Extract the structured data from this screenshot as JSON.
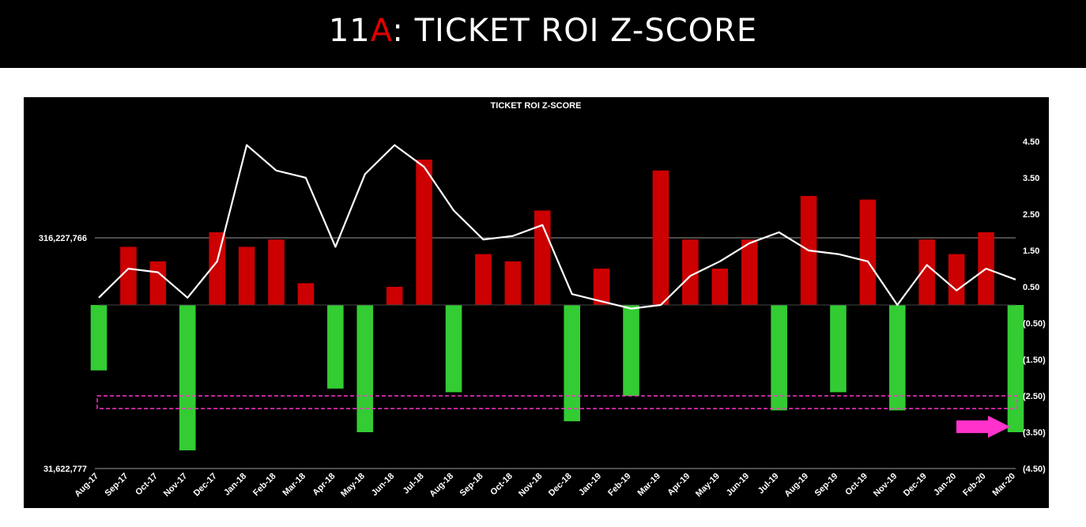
{
  "header": {
    "title_prefix": "11",
    "title_accent": "A",
    "title_suffix": ": TICKET ROI Z-SCORE"
  },
  "colors": {
    "background": "#000000",
    "positive_bar": "#cc0000",
    "negative_bar": "#33cc33",
    "line": "#ffffff",
    "highlight": "#ff33cc",
    "accent": "#e00000"
  },
  "chart_data": {
    "type": "bar",
    "title": "TICKET ROI Z-SCORE",
    "x_tick_labels": [
      "Aug-17",
      "Sep-17",
      "Oct-17",
      "Nov-17",
      "Dec-17",
      "Jan-18",
      "Feb-18",
      "Mar-18",
      "Apr-18",
      "May-18",
      "Jun-18",
      "Jul-18",
      "Aug-18",
      "Sep-18",
      "Oct-18",
      "Nov-18",
      "Dec-18",
      "Jan-19",
      "Feb-19",
      "Mar-19",
      "Apr-19",
      "May-19",
      "Jun-19",
      "Jul-19",
      "Aug-19",
      "Sep-19",
      "Oct-19",
      "Nov-19",
      "Dec-19",
      "Jan-20",
      "Feb-20",
      "Mar-20"
    ],
    "right_axis": {
      "tick_labels": [
        "4.50",
        "3.50",
        "2.50",
        "1.50",
        "0.50",
        "(0.50)",
        "(1.50)",
        "(2.50)",
        "(3.50)",
        "(4.50)"
      ],
      "tick_values": [
        4.5,
        3.5,
        2.5,
        1.5,
        0.5,
        -0.5,
        -1.5,
        -2.5,
        -3.5,
        -4.5
      ],
      "range": [
        -4.5,
        4.5
      ]
    },
    "left_axis": {
      "scale": "log",
      "tick_labels": [
        "316,227,766",
        "31,622,777"
      ],
      "tick_values": [
        316227766,
        31622777
      ]
    },
    "series": [
      {
        "type": "bar",
        "axis": "right",
        "dates": [
          "Aug-17",
          "Sep-17",
          "Oct-17",
          "Nov-17",
          "Dec-17",
          "Jan-18",
          "Feb-18",
          "Mar-18",
          "Apr-18",
          "May-18",
          "Jun-18",
          "Jul-18",
          "Aug-18",
          "Sep-18",
          "Oct-18",
          "Nov-18",
          "Dec-18",
          "Jan-19",
          "Feb-19",
          "Mar-19",
          "Apr-19",
          "May-19",
          "Jun-19",
          "Jul-19",
          "Aug-19",
          "Sep-19",
          "Oct-19",
          "Nov-19",
          "Dec-19",
          "Jan-20",
          "Feb-20",
          "Mar-20"
        ],
        "values": [
          -1.8,
          1.6,
          1.2,
          -4.0,
          2.0,
          1.6,
          1.8,
          0.6,
          -2.3,
          -3.5,
          0.5,
          4.0,
          -2.4,
          1.4,
          1.2,
          2.6,
          -3.2,
          1.0,
          -2.5,
          3.7,
          1.8,
          1.0,
          1.8,
          -2.9,
          3.0,
          -2.4,
          2.9,
          -2.9,
          1.8,
          1.4,
          2.0,
          -3.5
        ]
      },
      {
        "type": "line",
        "axis": "right",
        "dates": [
          "Aug-17",
          "Sep-17",
          "Oct-17",
          "Nov-17",
          "Dec-17",
          "Jan-18",
          "Feb-18",
          "Mar-18",
          "Apr-18",
          "May-18",
          "Jun-18",
          "Jul-18",
          "Aug-18",
          "Sep-18",
          "Oct-18",
          "Nov-18",
          "Dec-18",
          "Jan-19",
          "Feb-19",
          "Mar-19",
          "Apr-19",
          "May-19",
          "Jun-19",
          "Jul-19",
          "Aug-19",
          "Sep-19",
          "Oct-19",
          "Nov-19",
          "Dec-19",
          "Jan-20",
          "Feb-20",
          "Mar-20"
        ],
        "values": [
          0.2,
          1.0,
          0.9,
          0.2,
          1.2,
          4.4,
          3.7,
          3.5,
          1.6,
          3.6,
          4.4,
          3.8,
          2.6,
          1.8,
          1.9,
          2.2,
          0.3,
          0.1,
          -0.1,
          0.0,
          0.8,
          1.2,
          1.7,
          2.0,
          1.5,
          1.4,
          1.2,
          0.0,
          1.1,
          0.4,
          1.0,
          0.7
        ]
      }
    ],
    "highlight_band": [
      -2.5,
      -2.85
    ],
    "annotation": "pink arrow pointing at latest bar",
    "grid": false
  }
}
